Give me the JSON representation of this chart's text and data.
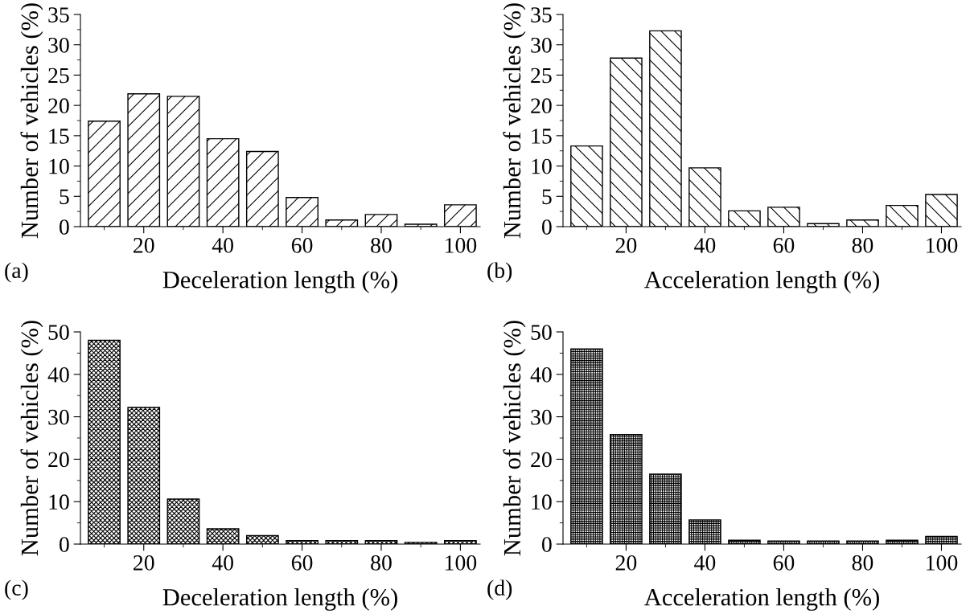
{
  "chart_data": [
    {
      "type": "bar",
      "xlabel": "Deceleration length (%)",
      "ylabel": "Number of vehicles (%)",
      "annotations": [
        "(a)"
      ],
      "x": [
        10,
        20,
        30,
        40,
        50,
        60,
        70,
        80,
        90,
        100
      ],
      "values": [
        17.4,
        21.9,
        21.5,
        14.5,
        12.4,
        4.8,
        1.1,
        2.0,
        0.4,
        3.6
      ],
      "color": "#000000",
      "xlim": [
        4,
        105
      ],
      "xticks": [
        20,
        40,
        60,
        80,
        100
      ],
      "ylim": [
        0,
        35
      ],
      "yticks": [
        0,
        5,
        10,
        15,
        20,
        25,
        30,
        35
      ],
      "grid": false,
      "legend": false
    },
    {
      "type": "bar",
      "xlabel": "Acceleration length (%)",
      "ylabel": "Number of vehicles (%)",
      "annotations": [
        "(b)"
      ],
      "x": [
        10,
        20,
        30,
        40,
        50,
        60,
        70,
        80,
        90,
        100
      ],
      "values": [
        13.3,
        27.8,
        32.3,
        9.7,
        2.6,
        3.2,
        0.5,
        1.1,
        3.5,
        5.3
      ],
      "color": "#000000",
      "xlim": [
        4,
        105
      ],
      "xticks": [
        20,
        40,
        60,
        80,
        100
      ],
      "ylim": [
        0,
        35
      ],
      "yticks": [
        0,
        5,
        10,
        15,
        20,
        25,
        30,
        35
      ],
      "grid": false,
      "legend": false
    },
    {
      "type": "bar",
      "xlabel": "Deceleration length (%)",
      "ylabel": "Number of vehicles (%)",
      "annotations": [
        "(c)"
      ],
      "x": [
        10,
        20,
        30,
        40,
        50,
        60,
        70,
        80,
        90,
        100
      ],
      "values": [
        48,
        32.2,
        10.6,
        3.6,
        2.0,
        0.8,
        0.8,
        0.8,
        0.4,
        0.8
      ],
      "color": "#000000",
      "xlim": [
        4,
        105
      ],
      "xticks": [
        20,
        40,
        60,
        80,
        100
      ],
      "ylim": [
        0,
        50
      ],
      "yticks": [
        0,
        10,
        20,
        30,
        40,
        50
      ],
      "grid": false,
      "legend": false
    },
    {
      "type": "bar",
      "xlabel": "Acceleration length (%)",
      "ylabel": "Number of vehicles (%)",
      "annotations": [
        "(d)"
      ],
      "x": [
        10,
        20,
        30,
        40,
        50,
        60,
        70,
        80,
        90,
        100
      ],
      "values": [
        46,
        25.8,
        16.5,
        5.7,
        0.9,
        0.7,
        0.7,
        0.7,
        0.9,
        1.8
      ],
      "color": "#000000",
      "xlim": [
        4,
        105
      ],
      "xticks": [
        20,
        40,
        60,
        80,
        100
      ],
      "ylim": [
        0,
        50
      ],
      "yticks": [
        0,
        10,
        20,
        30,
        40,
        50
      ],
      "grid": false,
      "legend": false
    }
  ]
}
